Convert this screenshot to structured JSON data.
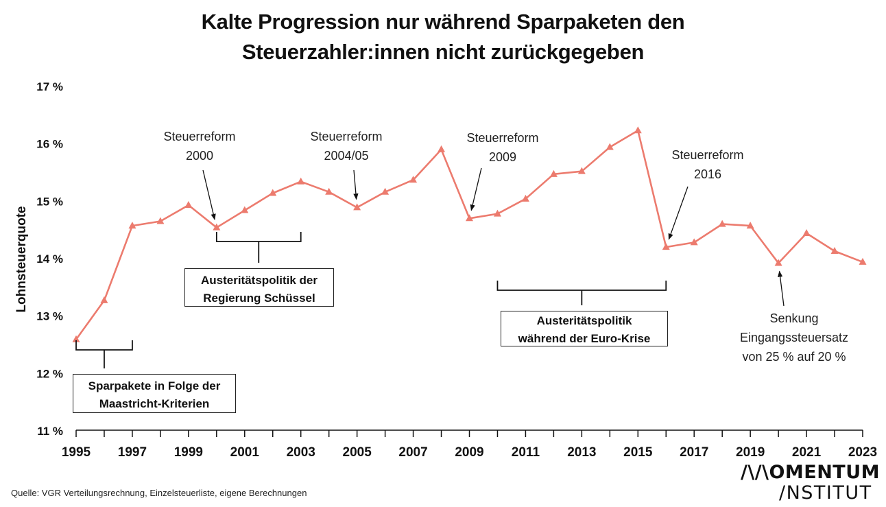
{
  "title": {
    "line1": "Kalte Progression nur während Sparpaketen den",
    "line2": "Steuerzahler:innen nicht zurückgegeben"
  },
  "source": "Quelle: VGR Verteilungsrechnung, Einzelsteuerliste, eigene Berechnungen",
  "logo": {
    "line1": "/\\/\\OMENTUM",
    "line2": "/NSTITUT"
  },
  "colors": {
    "line": "#ec7b6e",
    "text": "#111111",
    "axis": "#111111"
  },
  "chart_data": {
    "type": "line",
    "ylabel": "Lohnsteuerquote",
    "xlabel": "",
    "ylim": [
      11,
      17
    ],
    "xlim": [
      1995,
      2023
    ],
    "yticks": [
      11,
      12,
      13,
      14,
      15,
      16,
      17
    ],
    "ytick_labels": [
      "11 %",
      "12 %",
      "13 %",
      "14 %",
      "15 %",
      "16 %",
      "17 %"
    ],
    "xticks": [
      1995,
      1997,
      1999,
      2001,
      2003,
      2005,
      2007,
      2009,
      2011,
      2013,
      2015,
      2017,
      2019,
      2021,
      2023
    ],
    "xtick_labels": [
      "1995",
      "1997",
      "1999",
      "2001",
      "2003",
      "2005",
      "2007",
      "2009",
      "2011",
      "2013",
      "2015",
      "2017",
      "2019",
      "2021",
      "2023"
    ],
    "grid": false,
    "marker": "triangle",
    "series": [
      {
        "x": [
          1995,
          1996,
          1997,
          1998,
          1999,
          2000,
          2001,
          2002,
          2003,
          2004,
          2005,
          2006,
          2007,
          2008,
          2009,
          2010,
          2011,
          2012,
          2013,
          2014,
          2015,
          2016,
          2017,
          2018,
          2019,
          2020,
          2021,
          2022,
          2023
        ],
        "values": [
          12.58,
          13.26,
          14.56,
          14.64,
          14.92,
          14.53,
          14.83,
          15.13,
          15.33,
          15.15,
          14.88,
          15.15,
          15.36,
          15.89,
          14.69,
          14.77,
          15.03,
          15.46,
          15.51,
          15.93,
          16.22,
          14.19,
          14.27,
          14.59,
          14.56,
          13.91,
          14.43,
          14.12,
          13.93
        ]
      }
    ],
    "annotations": [
      {
        "lines": [
          "Steuerreform",
          "2000"
        ],
        "target_year": 2000
      },
      {
        "lines": [
          "Steuerreform",
          "2004/05"
        ],
        "target_year": 2005
      },
      {
        "lines": [
          "Steuerreform",
          "2009"
        ],
        "target_year": 2009
      },
      {
        "lines": [
          "Steuerreform",
          "2016"
        ],
        "target_year": 2016
      },
      {
        "lines": [
          "Senkung",
          "Eingangssteuersatz",
          "von 25 % auf 20 %"
        ],
        "target_year": 2020
      }
    ],
    "periods": [
      {
        "lines": [
          "Sparpakete in Folge der",
          "Maastricht-Kriterien"
        ],
        "from": 1995,
        "to": 1997
      },
      {
        "lines": [
          "Austeritätspolitik der",
          "Regierung Schüssel"
        ],
        "from": 2000,
        "to": 2003
      },
      {
        "lines": [
          "Austeritätspolitik",
          "während der Euro-Krise"
        ],
        "from": 2010,
        "to": 2016
      }
    ]
  }
}
